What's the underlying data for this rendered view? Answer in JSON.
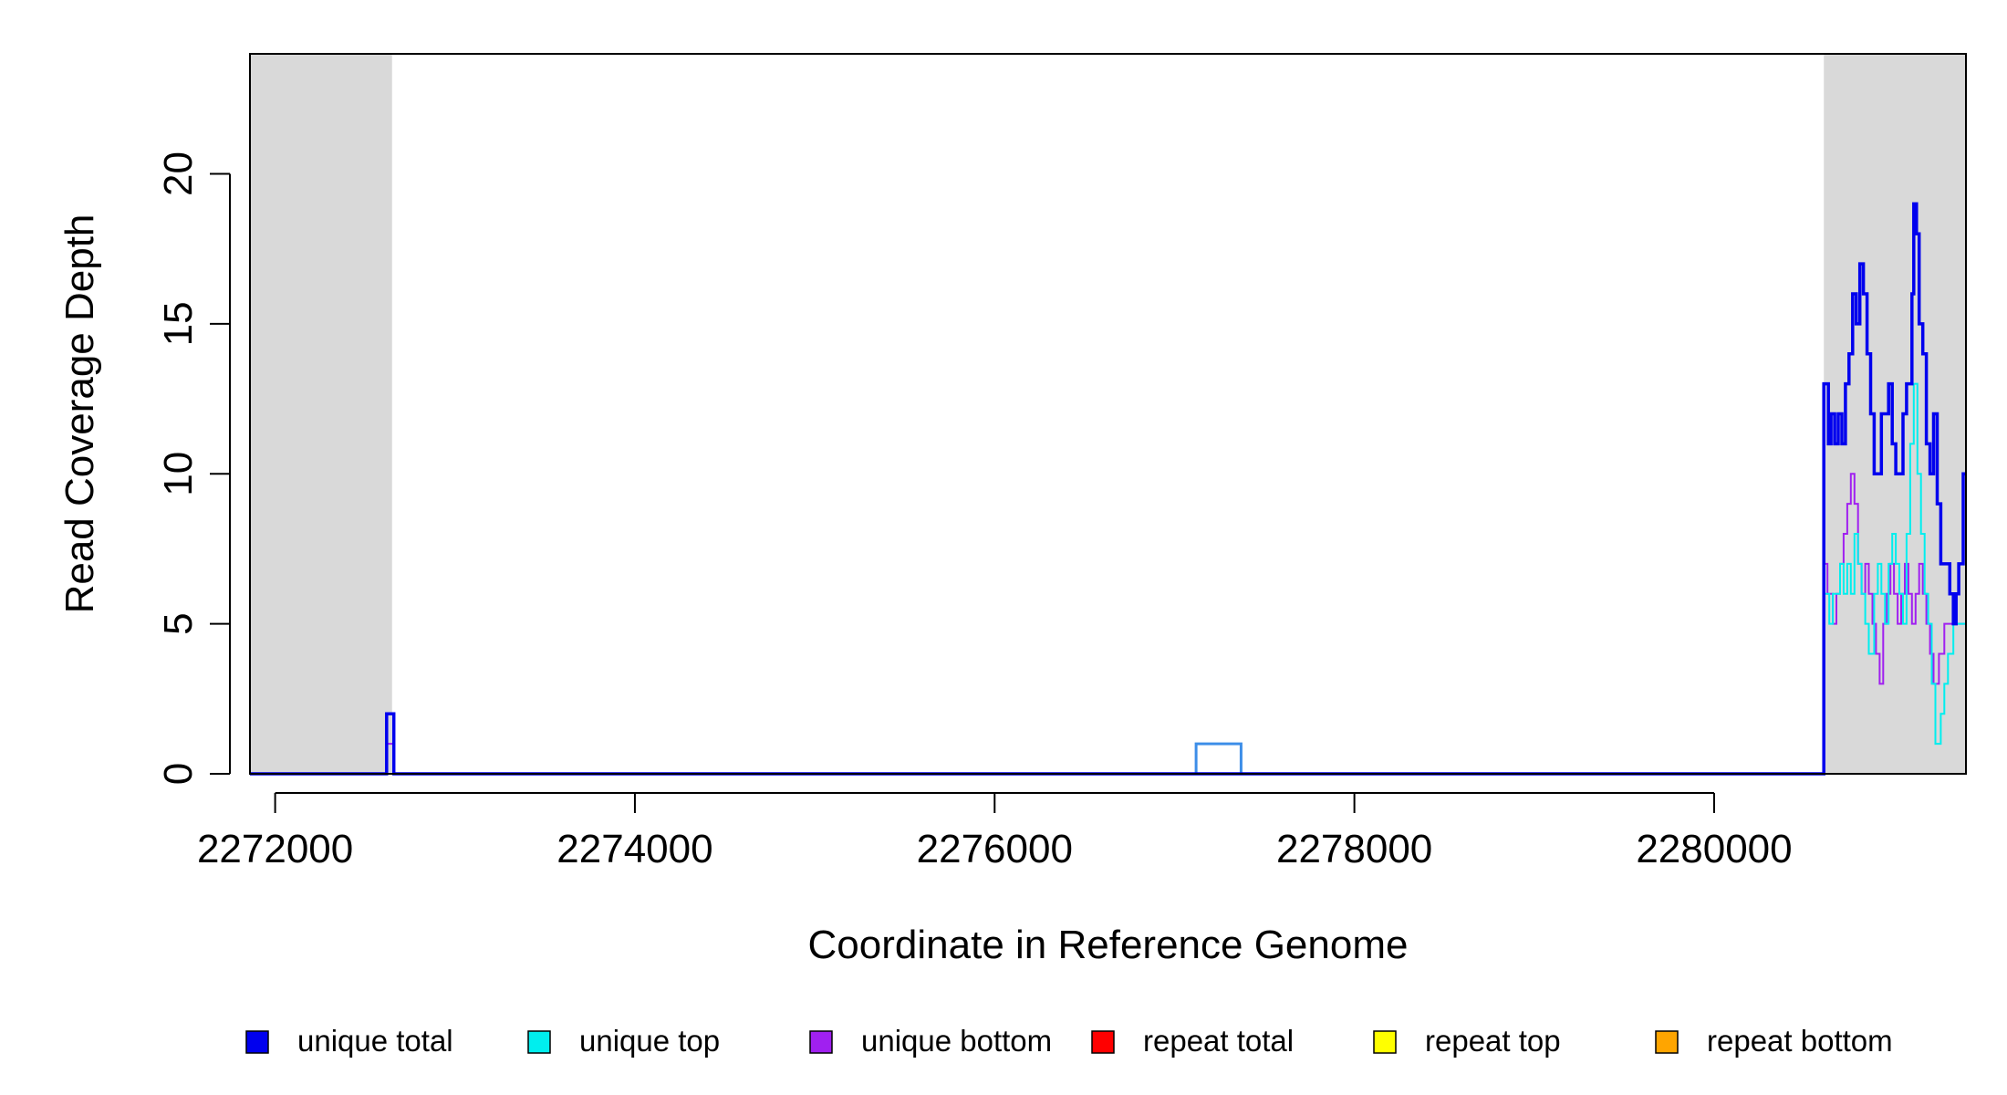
{
  "chart_data": {
    "type": "line",
    "title": "",
    "xlabel": "Coordinate in Reference Genome",
    "ylabel": "Read Coverage Depth",
    "xlim": [
      2271860,
      2281400
    ],
    "ylim": [
      0,
      24
    ],
    "x_ticks": [
      2272000,
      2274000,
      2276000,
      2278000,
      2280000
    ],
    "x_tick_labels": [
      "2272000",
      "2274000",
      "2276000",
      "2278000",
      "2280000"
    ],
    "y_ticks": [
      0,
      5,
      10,
      15,
      20
    ],
    "y_tick_labels": [
      "0",
      "5",
      "10",
      "15",
      "20"
    ],
    "grid": false,
    "legend_placement": "bottom",
    "shaded_regions": [
      {
        "x_start": 2271860,
        "x_end": 2272650,
        "color": "#d9d9d9"
      },
      {
        "x_start": 2280610,
        "x_end": 2281400,
        "color": "#d9d9d9"
      }
    ],
    "highlight_box": {
      "x_start": 2277120,
      "x_end": 2277370,
      "y": 1,
      "color": "#3d8ee8"
    },
    "series": [
      {
        "name": "unique total",
        "color": "#0000ee",
        "stroke": 3.5,
        "points": [
          [
            2271860,
            0
          ],
          [
            2272620,
            0
          ],
          [
            2272620,
            2
          ],
          [
            2272660,
            2
          ],
          [
            2272660,
            0
          ],
          [
            2280600,
            0
          ],
          [
            2280610,
            13
          ],
          [
            2280635,
            11
          ],
          [
            2280650,
            12
          ],
          [
            2280670,
            11
          ],
          [
            2280690,
            12
          ],
          [
            2280710,
            11
          ],
          [
            2280730,
            13
          ],
          [
            2280750,
            14
          ],
          [
            2280770,
            16
          ],
          [
            2280790,
            15
          ],
          [
            2280810,
            17
          ],
          [
            2280830,
            16
          ],
          [
            2280850,
            14
          ],
          [
            2280870,
            12
          ],
          [
            2280890,
            10
          ],
          [
            2280930,
            12
          ],
          [
            2280950,
            12
          ],
          [
            2280970,
            13
          ],
          [
            2280990,
            11
          ],
          [
            2281010,
            10
          ],
          [
            2281050,
            12
          ],
          [
            2281070,
            13
          ],
          [
            2281090,
            13
          ],
          [
            2281100,
            16
          ],
          [
            2281110,
            19
          ],
          [
            2281125,
            18
          ],
          [
            2281140,
            15
          ],
          [
            2281160,
            14
          ],
          [
            2281180,
            11
          ],
          [
            2281200,
            10
          ],
          [
            2281220,
            12
          ],
          [
            2281240,
            9
          ],
          [
            2281260,
            7
          ],
          [
            2281290,
            7
          ],
          [
            2281310,
            6
          ],
          [
            2281330,
            5
          ],
          [
            2281345,
            6
          ],
          [
            2281360,
            7
          ],
          [
            2281375,
            7
          ],
          [
            2281385,
            10
          ],
          [
            2281400,
            10
          ]
        ]
      },
      {
        "name": "unique top",
        "color": "#00eeee",
        "stroke": 2,
        "points": [
          [
            2271860,
            0
          ],
          [
            2280600,
            0
          ],
          [
            2280610,
            6
          ],
          [
            2280640,
            5
          ],
          [
            2280660,
            6
          ],
          [
            2280700,
            7
          ],
          [
            2280720,
            6
          ],
          [
            2280740,
            7
          ],
          [
            2280760,
            6
          ],
          [
            2280780,
            8
          ],
          [
            2280800,
            7
          ],
          [
            2280820,
            6
          ],
          [
            2280840,
            5
          ],
          [
            2280860,
            4
          ],
          [
            2280890,
            6
          ],
          [
            2280910,
            7
          ],
          [
            2280930,
            6
          ],
          [
            2280950,
            5
          ],
          [
            2280970,
            7
          ],
          [
            2280990,
            8
          ],
          [
            2281010,
            7
          ],
          [
            2281030,
            6
          ],
          [
            2281050,
            5
          ],
          [
            2281070,
            8
          ],
          [
            2281090,
            11
          ],
          [
            2281110,
            13
          ],
          [
            2281130,
            10
          ],
          [
            2281150,
            8
          ],
          [
            2281170,
            6
          ],
          [
            2281190,
            5
          ],
          [
            2281210,
            3
          ],
          [
            2281230,
            1
          ],
          [
            2281260,
            2
          ],
          [
            2281280,
            3
          ],
          [
            2281300,
            4
          ],
          [
            2281330,
            5
          ],
          [
            2281400,
            5
          ]
        ]
      },
      {
        "name": "unique bottom",
        "color": "#a020f0",
        "stroke": 2,
        "points": [
          [
            2271860,
            0
          ],
          [
            2272620,
            0
          ],
          [
            2272620,
            1
          ],
          [
            2272660,
            1
          ],
          [
            2272660,
            0
          ],
          [
            2280600,
            0
          ],
          [
            2280610,
            7
          ],
          [
            2280630,
            6
          ],
          [
            2280660,
            5
          ],
          [
            2280680,
            6
          ],
          [
            2280700,
            7
          ],
          [
            2280720,
            8
          ],
          [
            2280740,
            9
          ],
          [
            2280760,
            10
          ],
          [
            2280780,
            9
          ],
          [
            2280800,
            7
          ],
          [
            2280820,
            6
          ],
          [
            2280840,
            7
          ],
          [
            2280860,
            6
          ],
          [
            2280880,
            5
          ],
          [
            2280900,
            4
          ],
          [
            2280920,
            3
          ],
          [
            2280940,
            5
          ],
          [
            2280960,
            6
          ],
          [
            2280980,
            7
          ],
          [
            2281000,
            6
          ],
          [
            2281020,
            5
          ],
          [
            2281040,
            6
          ],
          [
            2281060,
            7
          ],
          [
            2281080,
            6
          ],
          [
            2281100,
            5
          ],
          [
            2281120,
            6
          ],
          [
            2281140,
            7
          ],
          [
            2281160,
            6
          ],
          [
            2281180,
            5
          ],
          [
            2281200,
            4
          ],
          [
            2281220,
            3
          ],
          [
            2281250,
            4
          ],
          [
            2281280,
            5
          ],
          [
            2281400,
            5
          ]
        ]
      },
      {
        "name": "repeat total",
        "color": "#ff0000",
        "stroke": 2,
        "points": [
          [
            2271860,
            0
          ],
          [
            2281400,
            0
          ]
        ]
      },
      {
        "name": "repeat top",
        "color": "#ffff00",
        "stroke": 2,
        "points": [
          [
            2271860,
            0
          ],
          [
            2281400,
            0
          ]
        ]
      },
      {
        "name": "repeat bottom",
        "color": "#ffa500",
        "stroke": 2,
        "points": [
          [
            2271860,
            0
          ],
          [
            2281400,
            0
          ]
        ]
      }
    ]
  },
  "legend": [
    {
      "label": "unique total",
      "color": "#0000ee"
    },
    {
      "label": "unique top",
      "color": "#00eeee"
    },
    {
      "label": "unique bottom",
      "color": "#a020f0"
    },
    {
      "label": "repeat total",
      "color": "#ff0000"
    },
    {
      "label": "repeat top",
      "color": "#ffff00"
    },
    {
      "label": "repeat bottom",
      "color": "#ffa500"
    }
  ]
}
